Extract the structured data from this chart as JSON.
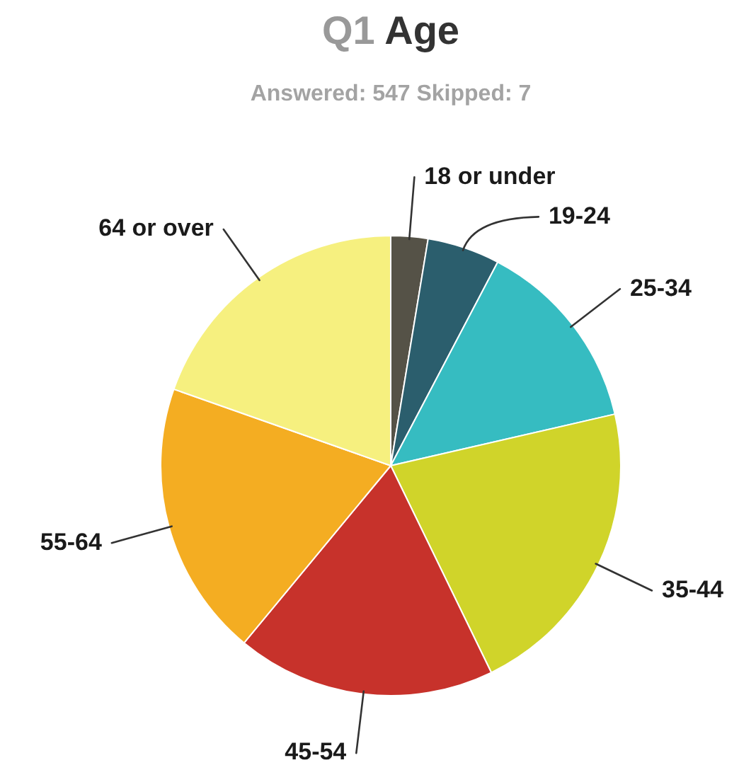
{
  "chart_data": {
    "type": "pie",
    "title": "Q1 Age",
    "subtitle": "Answered: 547 Skipped: 7",
    "categories": [
      "18 or under",
      "19-24",
      "25-34",
      "35-44",
      "45-54",
      "55-64",
      "64 or over"
    ],
    "values": [
      2.6,
      5.1,
      13.7,
      21.4,
      18.2,
      19.4,
      19.6
    ],
    "colors": [
      "#555247",
      "#2b5e6d",
      "#36bcc1",
      "#d0d42a",
      "#c7322b",
      "#f4ad22",
      "#f6f07f"
    ]
  }
}
